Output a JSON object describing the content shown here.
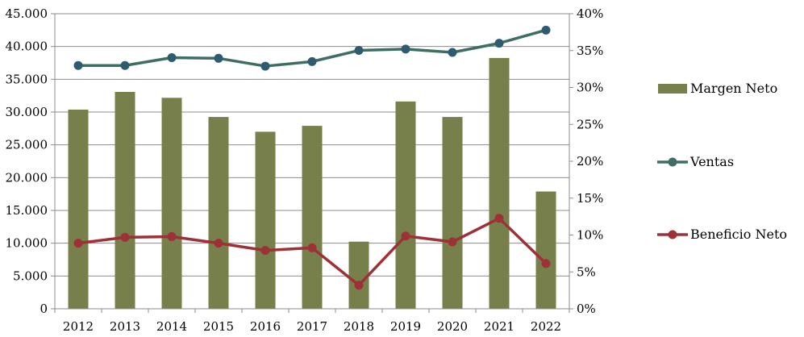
{
  "chart_data": {
    "type": "bar",
    "categories": [
      "2012",
      "2013",
      "2014",
      "2015",
      "2016",
      "2017",
      "2018",
      "2019",
      "2020",
      "2021",
      "2022"
    ],
    "series": [
      {
        "name": "Margen Neto",
        "type": "bar",
        "axis": "right",
        "color": "#77804a",
        "values": [
          27.0,
          29.4,
          28.6,
          26.0,
          24.0,
          24.8,
          9.1,
          28.1,
          26.0,
          34.0,
          15.9
        ]
      },
      {
        "name": "Ventas",
        "type": "line",
        "axis": "left",
        "color": "#3e6e63",
        "marker_color": "#2f5b70",
        "values": [
          37100,
          37100,
          38300,
          38200,
          37000,
          37700,
          39400,
          39600,
          39100,
          40500,
          42500
        ]
      },
      {
        "name": "Beneficio Neto",
        "type": "line",
        "axis": "left",
        "color": "#9e3037",
        "marker_color": "#9e3037",
        "values": [
          10000,
          10900,
          11000,
          10000,
          8900,
          9300,
          3600,
          11100,
          10200,
          13800,
          6900
        ]
      }
    ],
    "y_left": {
      "range": [
        0,
        45000
      ],
      "ticks": [
        0,
        5000,
        10000,
        15000,
        20000,
        25000,
        30000,
        35000,
        40000,
        45000
      ],
      "tick_labels": [
        "0",
        "5.000",
        "10.000",
        "15.000",
        "20.000",
        "25.000",
        "30.000",
        "35.000",
        "40.000",
        "45.000"
      ]
    },
    "y_right": {
      "range": [
        0,
        40
      ],
      "ticks": [
        0,
        5,
        10,
        15,
        20,
        25,
        30,
        35,
        40
      ],
      "tick_labels": [
        "0%",
        "5%",
        "10%",
        "15%",
        "20%",
        "25%",
        "30%",
        "35%",
        "40%"
      ]
    },
    "grid": "horizontal",
    "legend_position": "right",
    "legend": [
      {
        "label": "Margen Neto",
        "kind": "bar",
        "color": "#77804a"
      },
      {
        "label": "Ventas",
        "kind": "line",
        "color": "#3e6e63"
      },
      {
        "label": "Beneficio Neto",
        "kind": "line",
        "color": "#9e3037"
      }
    ],
    "title": "",
    "xlabel": "",
    "ylabel": ""
  }
}
